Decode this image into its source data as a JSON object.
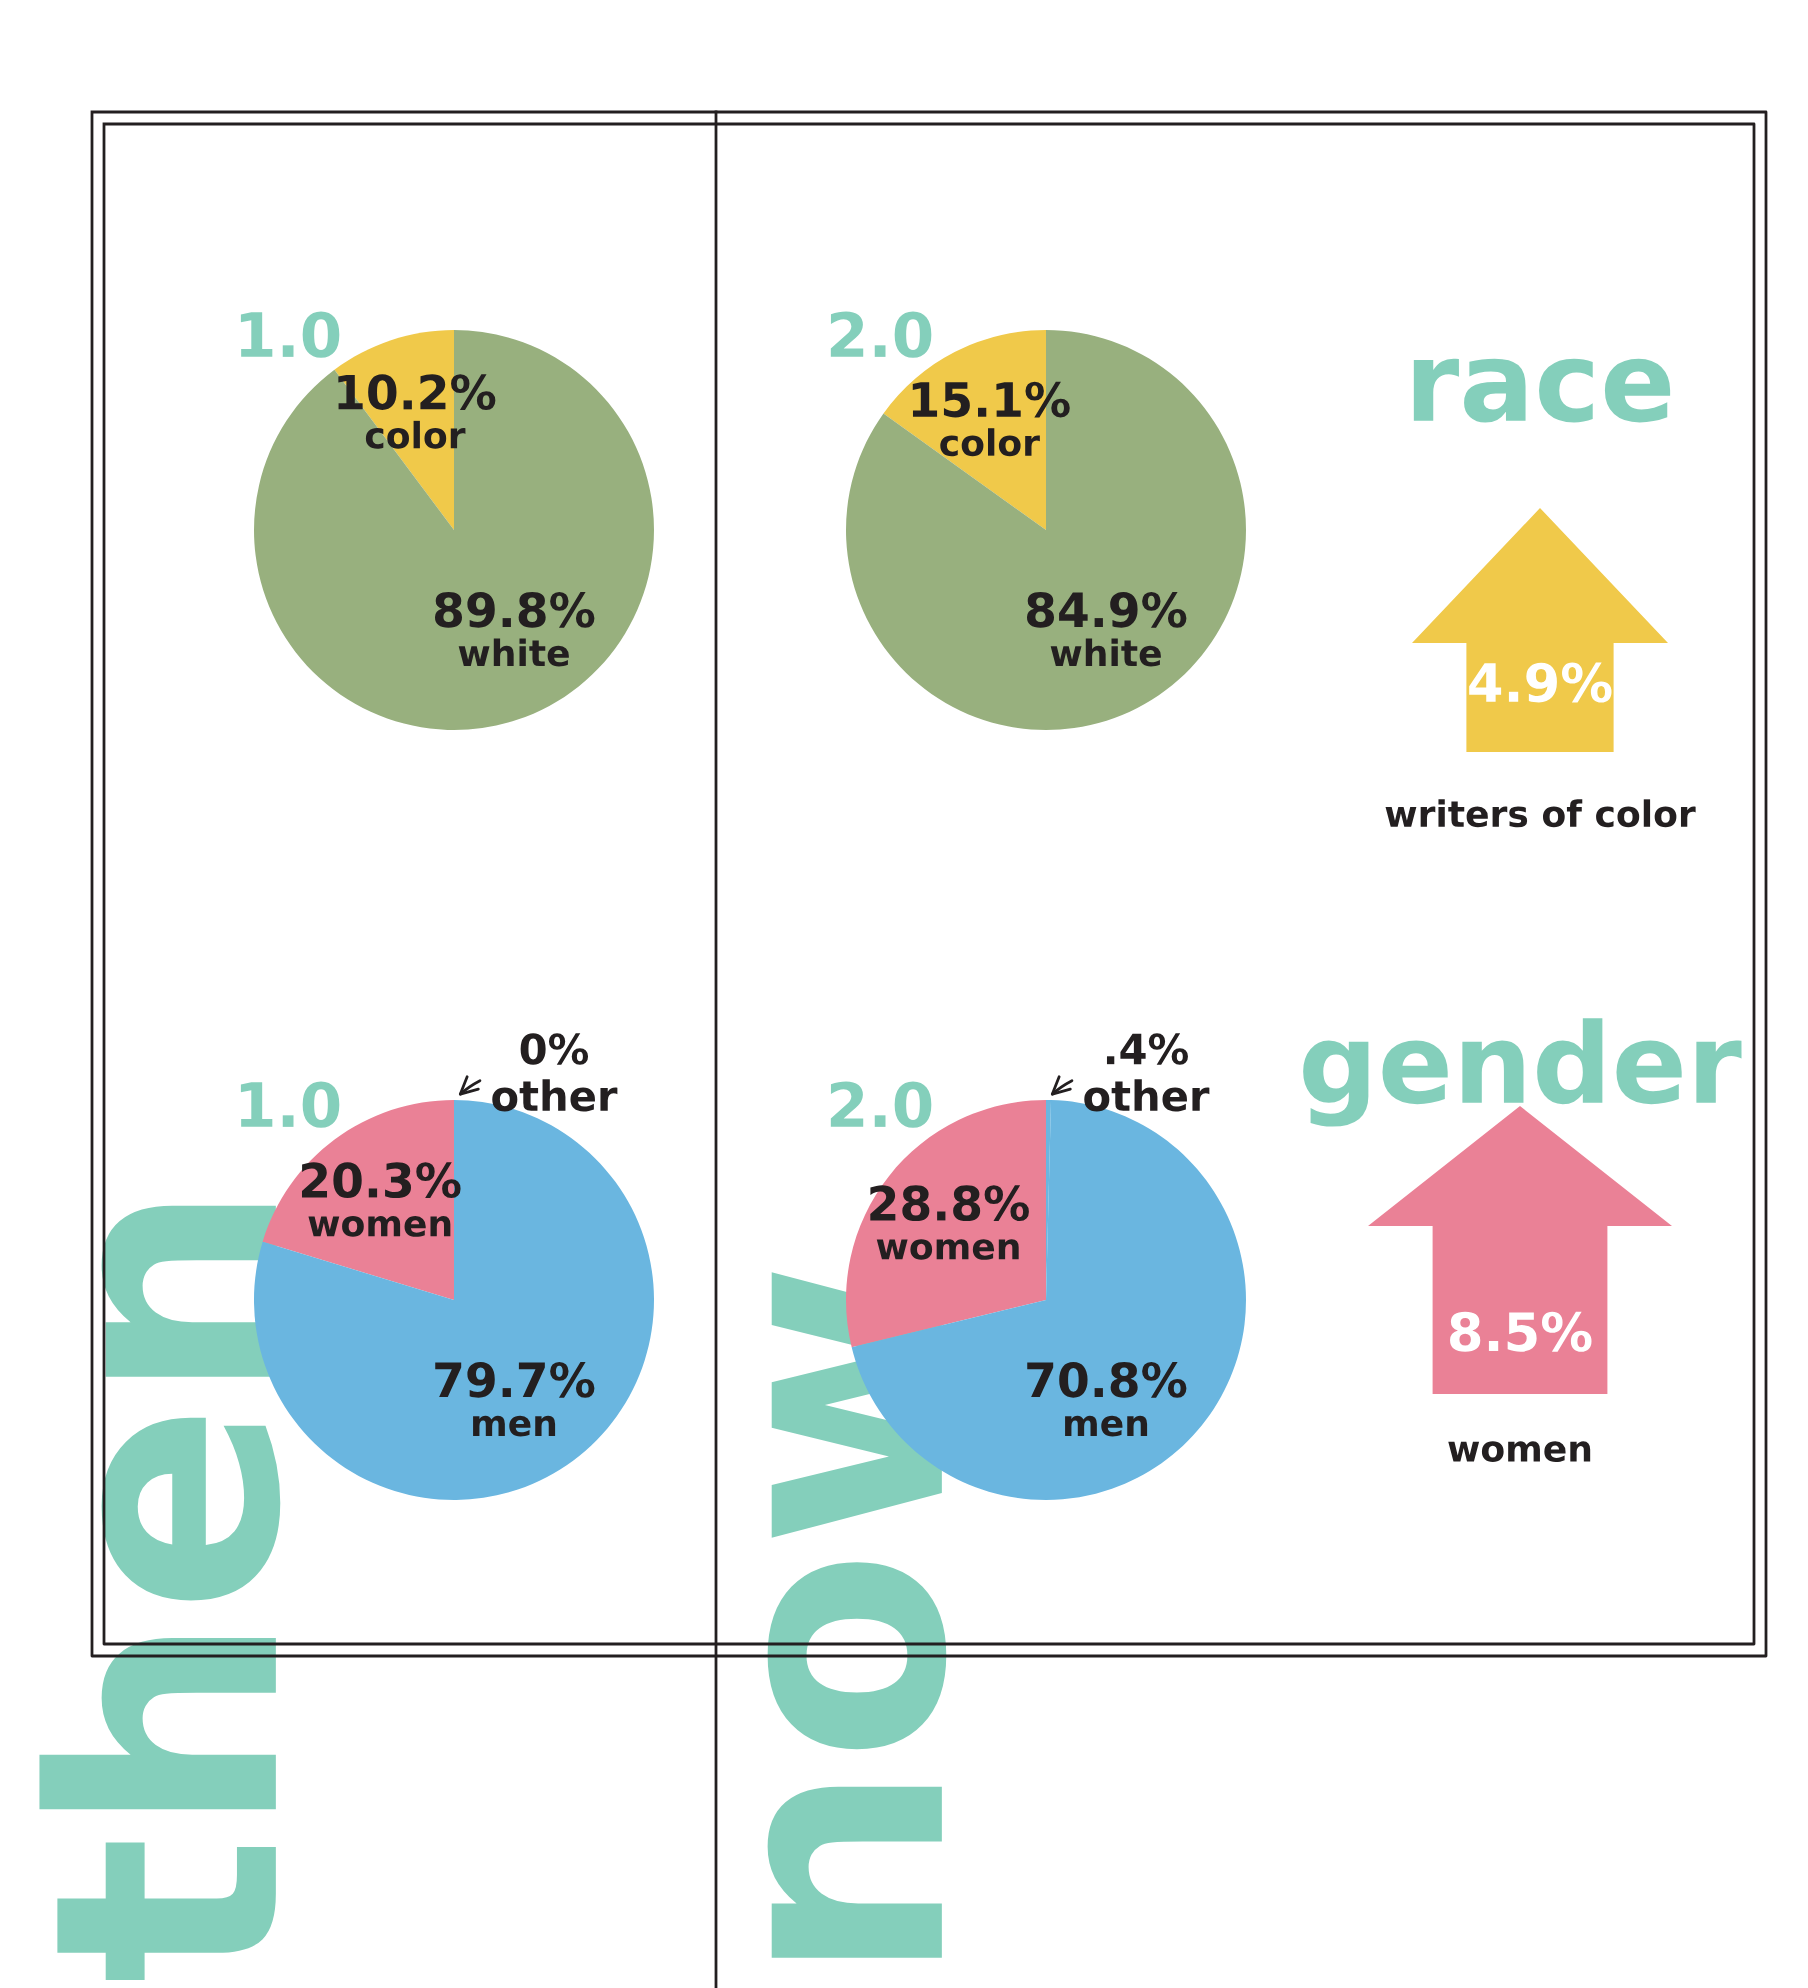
{
  "chart_data": [
    {
      "type": "pie",
      "title": "1.0",
      "categories": [
        "color",
        "white"
      ],
      "values": [
        10.2,
        89.8
      ],
      "colors": [
        "#f0c94a",
        "#98b07e"
      ],
      "value_labels": [
        "10.2%",
        "89.8%"
      ]
    },
    {
      "type": "pie",
      "title": "2.0",
      "categories": [
        "color",
        "white"
      ],
      "values": [
        15.1,
        84.9
      ],
      "colors": [
        "#f0c94a",
        "#98b07e"
      ],
      "value_labels": [
        "15.1%",
        "84.9%"
      ]
    },
    {
      "type": "other",
      "title": "race",
      "categories": [
        "writers of color"
      ],
      "values": [
        4.9
      ],
      "colors": [
        "#f0c94a"
      ],
      "value_labels": [
        "4.9%"
      ]
    },
    {
      "type": "pie",
      "title": "1.0",
      "categories": [
        "women",
        "men",
        "other"
      ],
      "values": [
        20.3,
        79.7,
        0
      ],
      "colors": [
        "#ea8196",
        "#6ab6e0",
        "#6ab6e0"
      ],
      "value_labels": [
        "20.3%",
        "79.7%",
        "0%"
      ]
    },
    {
      "type": "pie",
      "title": "2.0",
      "categories": [
        "women",
        "men",
        "other"
      ],
      "values": [
        28.8,
        70.8,
        0.4
      ],
      "colors": [
        "#ea8196",
        "#6ab6e0",
        "#6ab6e0"
      ],
      "value_labels": [
        "28.8%",
        "70.8%",
        ".4%"
      ]
    },
    {
      "type": "other",
      "title": "gender",
      "categories": [
        "women"
      ],
      "values": [
        8.5
      ],
      "colors": [
        "#ea8196"
      ],
      "value_labels": [
        "8.5%"
      ]
    },
    {
      "type": "other",
      "annotations": [
        "then",
        "now"
      ]
    }
  ]
}
